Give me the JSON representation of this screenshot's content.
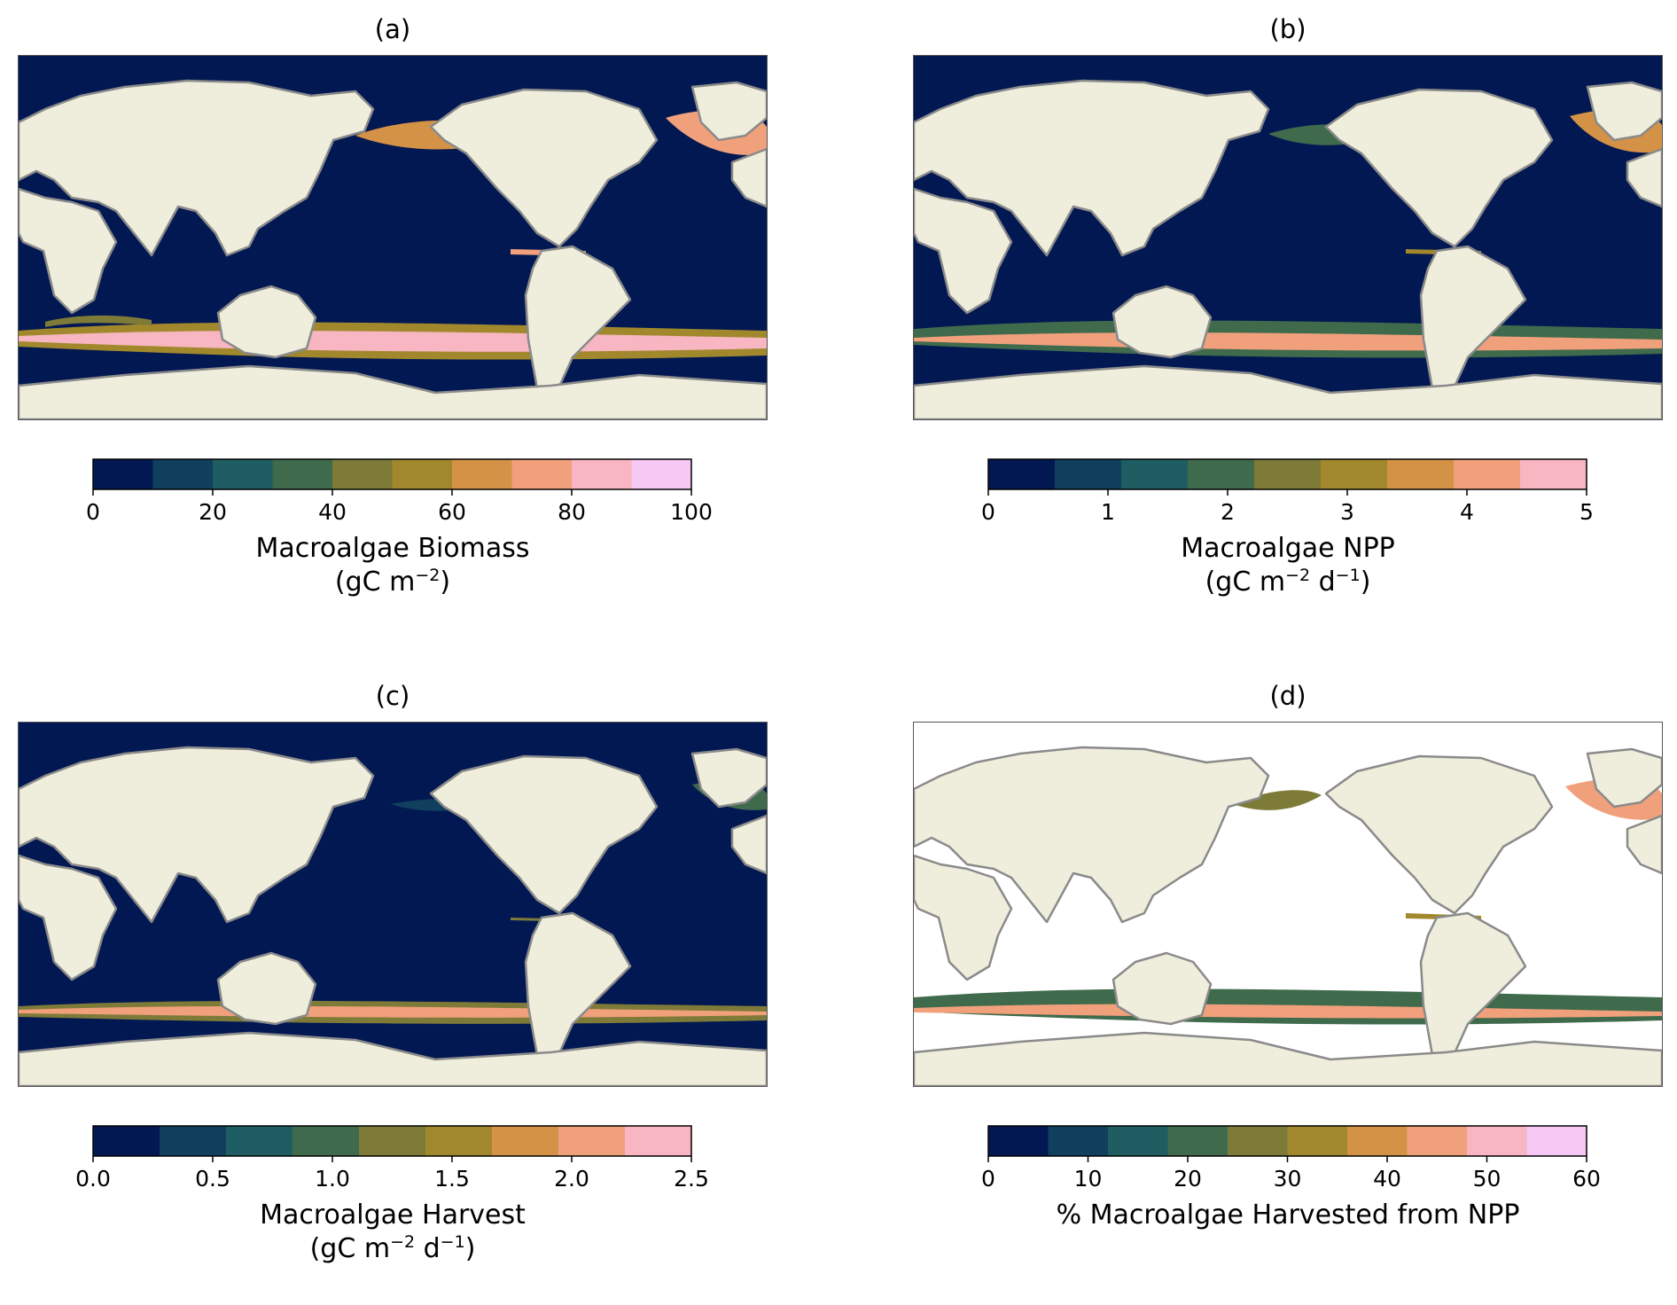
{
  "colors": {
    "ocean": "#021852",
    "land": "#efeedc",
    "coast": "#8a8a8a",
    "ice": "#ffffff",
    "palette": [
      "#021852",
      "#113f5e",
      "#1e5d61",
      "#3f6a4c",
      "#7d7b37",
      "#a1882d",
      "#d49246",
      "#f1a07c",
      "#f7b6c1",
      "#f6c8f4"
    ]
  },
  "panels": [
    {
      "id": "a",
      "title": "(a)",
      "ocean_background": "ocean",
      "cbar": {
        "ticks": [
          "0",
          "20",
          "40",
          "60",
          "80",
          "100"
        ],
        "bins": 10,
        "min": 0,
        "max": 100
      },
      "label": {
        "line1": "Macroalgae Biomass",
        "line2_prefix": "(gC m",
        "line2_sup1": "−2",
        "line2_mid": ")",
        "line2_sup2": "",
        "line2_suffix": ""
      }
    },
    {
      "id": "b",
      "title": "(b)",
      "ocean_background": "ocean",
      "cbar": {
        "ticks": [
          "0",
          "1",
          "2",
          "3",
          "4",
          "5"
        ],
        "bins": 9,
        "min": 0,
        "max": 5
      },
      "label": {
        "line1": "Macroalgae NPP",
        "line2_prefix": "(gC m",
        "line2_sup1": "−2",
        "line2_mid": " d",
        "line2_sup2": "−1",
        "line2_suffix": ")"
      }
    },
    {
      "id": "c",
      "title": "(c)",
      "ocean_background": "ocean",
      "cbar": {
        "ticks": [
          "0.0",
          "0.5",
          "1.0",
          "1.5",
          "2.0",
          "2.5"
        ],
        "bins": 9,
        "min": 0,
        "max": 2.5
      },
      "label": {
        "line1": "Macroalgae Harvest",
        "line2_prefix": "(gC m",
        "line2_sup1": "−2",
        "line2_mid": " d",
        "line2_sup2": "−1",
        "line2_suffix": ")"
      }
    },
    {
      "id": "d",
      "title": "(d)",
      "ocean_background": "ice",
      "cbar": {
        "ticks": [
          "0",
          "10",
          "20",
          "30",
          "40",
          "50",
          "60"
        ],
        "bins": 10,
        "min": 0,
        "max": 60
      },
      "label": {
        "line1": "% Macroalgae Harvested from NPP",
        "line2_prefix": "",
        "line2_sup1": "",
        "line2_mid": "",
        "line2_sup2": "",
        "line2_suffix": ""
      }
    }
  ]
}
